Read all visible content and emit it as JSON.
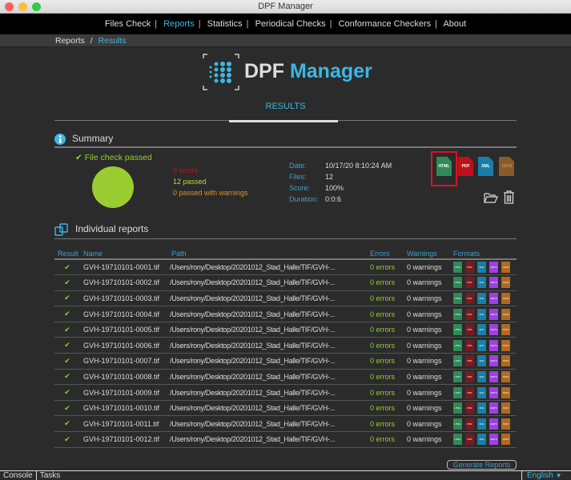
{
  "window": {
    "title": "DPF Manager"
  },
  "nav": {
    "items": [
      {
        "label": "Files Check"
      },
      {
        "label": "Reports",
        "active": true
      },
      {
        "label": "Statistics"
      },
      {
        "label": "Periodical Checks"
      },
      {
        "label": "Conformance Checkers"
      },
      {
        "label": "About"
      }
    ]
  },
  "breadcrumb": {
    "root": "Reports",
    "sep": "/",
    "current": "Results"
  },
  "logo": {
    "part1": "DPF",
    "part2": "Manager"
  },
  "page_title": "RESULTS",
  "summary": {
    "title": "Summary",
    "status": "File check passed",
    "pie_passed_fraction": 1.0,
    "errors": "0 errors",
    "passed": "12 passed",
    "warnings": "0 passed with warnings",
    "date_label": "Date:",
    "date": "10/17/20 8:10:24 AM",
    "files_label": "Files:",
    "files": "12",
    "score_label": "Score:",
    "score": "100%",
    "duration_label": "Duration:",
    "duration": "0:0:6",
    "formats": [
      {
        "label": "HTML",
        "color": "#2e8b57",
        "selected": true
      },
      {
        "label": "PDF",
        "color": "#c0101b"
      },
      {
        "label": "XML",
        "color": "#1a7fa8"
      },
      {
        "label": "JSON",
        "color": "#8a5a2b"
      }
    ]
  },
  "individual": {
    "title": "Individual reports",
    "columns": [
      "Result",
      "Name",
      "Path",
      "Errors",
      "Warnings",
      "Formats"
    ],
    "format_icons": [
      {
        "label": "HTML",
        "color": "#2e8b57"
      },
      {
        "label": "PDF",
        "color": "#7a1a20"
      },
      {
        "label": "XML",
        "color": "#1a7fa8"
      },
      {
        "label": "METS",
        "color": "#a040e0"
      },
      {
        "label": "JSON",
        "color": "#b06a20"
      }
    ],
    "rows": [
      {
        "name": "GVH-19710101-0001.tif",
        "path": "/Users/rony/Desktop/20201012_Stad_Halle/TIF/GVH-...",
        "errors": "0 errors",
        "warnings": "0 warnings"
      },
      {
        "name": "GVH-19710101-0002.tif",
        "path": "/Users/rony/Desktop/20201012_Stad_Halle/TIF/GVH-...",
        "errors": "0 errors",
        "warnings": "0 warnings"
      },
      {
        "name": "GVH-19710101-0003.tif",
        "path": "/Users/rony/Desktop/20201012_Stad_Halle/TIF/GVH-...",
        "errors": "0 errors",
        "warnings": "0 warnings"
      },
      {
        "name": "GVH-19710101-0004.tif",
        "path": "/Users/rony/Desktop/20201012_Stad_Halle/TIF/GVH-...",
        "errors": "0 errors",
        "warnings": "0 warnings"
      },
      {
        "name": "GVH-19710101-0005.tif",
        "path": "/Users/rony/Desktop/20201012_Stad_Halle/TIF/GVH-...",
        "errors": "0 errors",
        "warnings": "0 warnings"
      },
      {
        "name": "GVH-19710101-0006.tif",
        "path": "/Users/rony/Desktop/20201012_Stad_Halle/TIF/GVH-...",
        "errors": "0 errors",
        "warnings": "0 warnings"
      },
      {
        "name": "GVH-19710101-0007.tif",
        "path": "/Users/rony/Desktop/20201012_Stad_Halle/TIF/GVH-...",
        "errors": "0 errors",
        "warnings": "0 warnings"
      },
      {
        "name": "GVH-19710101-0008.tif",
        "path": "/Users/rony/Desktop/20201012_Stad_Halle/TIF/GVH-...",
        "errors": "0 errors",
        "warnings": "0 warnings"
      },
      {
        "name": "GVH-19710101-0009.tif",
        "path": "/Users/rony/Desktop/20201012_Stad_Halle/TIF/GVH-...",
        "errors": "0 errors",
        "warnings": "0 warnings"
      },
      {
        "name": "GVH-19710101-0010.tif",
        "path": "/Users/rony/Desktop/20201012_Stad_Halle/TIF/GVH-...",
        "errors": "0 errors",
        "warnings": "0 warnings"
      },
      {
        "name": "GVH-19710101-0011.tif",
        "path": "/Users/rony/Desktop/20201012_Stad_Halle/TIF/GVH-...",
        "errors": "0 errors",
        "warnings": "0 warnings"
      },
      {
        "name": "GVH-19710101-0012.tif",
        "path": "/Users/rony/Desktop/20201012_Stad_Halle/TIF/GVH-...",
        "errors": "0 errors",
        "warnings": "0 warnings"
      }
    ]
  },
  "generate_button": "Generate Reports",
  "bottom": {
    "console": "Console",
    "tasks": "Tasks",
    "language": "English"
  }
}
